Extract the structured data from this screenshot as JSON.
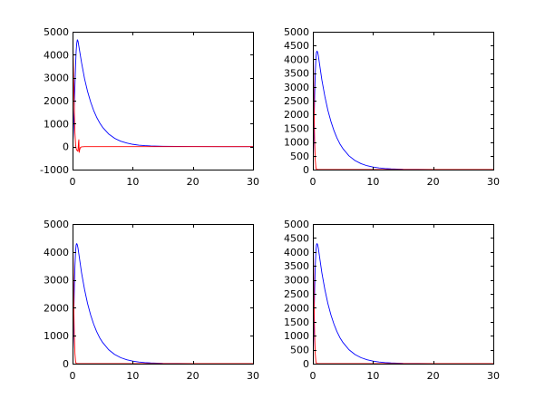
{
  "chart_data": [
    {
      "type": "line",
      "xlim": [
        0,
        30
      ],
      "ylim": [
        -1000,
        5000
      ],
      "xticks": [
        0,
        10,
        20,
        30
      ],
      "yticks": [
        -1000,
        0,
        1000,
        2000,
        3000,
        4000,
        5000
      ],
      "grid": false,
      "series": [
        {
          "color": "#0000ff",
          "x": [
            0,
            0.1,
            0.2,
            0.3,
            0.4,
            0.5,
            0.6,
            0.7,
            0.8,
            0.9,
            1,
            1.5,
            2,
            2.5,
            3,
            3.5,
            4,
            4.5,
            5,
            6,
            7,
            8,
            9,
            10,
            11,
            12,
            13,
            15,
            20,
            25,
            30
          ],
          "y": [
            0,
            350,
            1000,
            1800,
            2700,
            3500,
            4150,
            4500,
            4650,
            4600,
            4450,
            3650,
            2950,
            2400,
            1950,
            1580,
            1280,
            1040,
            840,
            550,
            360,
            235,
            155,
            100,
            65,
            42,
            27,
            12,
            3,
            1,
            0
          ]
        },
        {
          "color": "#ff0000",
          "x": [
            0,
            0.04,
            0.1,
            0.2,
            0.3,
            0.4,
            0.5,
            0.6,
            0.7,
            0.8,
            0.9,
            1.0,
            1.05,
            1.1,
            1.2,
            1.3,
            1.5,
            2,
            5,
            10,
            15,
            20,
            25,
            30
          ],
          "y": [
            5000,
            4800,
            4000,
            2800,
            1500,
            600,
            100,
            -80,
            -150,
            -180,
            -200,
            200,
            300,
            -250,
            -120,
            -40,
            -10,
            0,
            0,
            0,
            0,
            0,
            0,
            0
          ]
        }
      ]
    },
    {
      "type": "line",
      "xlim": [
        0,
        30
      ],
      "ylim": [
        0,
        5000
      ],
      "xticks": [
        0,
        10,
        20,
        30
      ],
      "yticks": [
        0,
        500,
        1000,
        1500,
        2000,
        2500,
        3000,
        3500,
        4000,
        4500,
        5000
      ],
      "grid": false,
      "series": [
        {
          "color": "#0000ff",
          "x": [
            0,
            0.1,
            0.2,
            0.3,
            0.4,
            0.5,
            0.6,
            0.7,
            0.8,
            0.9,
            1,
            1.5,
            2,
            2.5,
            3,
            3.5,
            4,
            4.5,
            5,
            6,
            7,
            8,
            9,
            10,
            11,
            12,
            13,
            15,
            20,
            25,
            30
          ],
          "y": [
            0,
            600,
            1600,
            2700,
            3500,
            4000,
            4250,
            4300,
            4250,
            4150,
            4000,
            3250,
            2650,
            2150,
            1750,
            1420,
            1150,
            930,
            760,
            500,
            330,
            215,
            140,
            92,
            60,
            39,
            25,
            11,
            3,
            1,
            0
          ]
        },
        {
          "color": "#ff0000",
          "x": [
            0,
            0.05,
            0.1,
            0.2,
            0.3,
            0.4,
            0.5,
            0.6,
            0.8,
            1,
            2,
            5,
            10,
            15,
            20,
            25,
            30
          ],
          "y": [
            5000,
            4600,
            3800,
            2200,
            1000,
            350,
            80,
            10,
            0,
            0,
            0,
            0,
            0,
            0,
            0,
            0,
            0
          ]
        }
      ]
    },
    {
      "type": "line",
      "xlim": [
        0,
        30
      ],
      "ylim": [
        0,
        5000
      ],
      "xticks": [
        0,
        10,
        20,
        30
      ],
      "yticks": [
        0,
        1000,
        2000,
        3000,
        4000,
        5000
      ],
      "grid": false,
      "series": [
        {
          "color": "#0000ff",
          "x": [
            0,
            0.1,
            0.2,
            0.3,
            0.4,
            0.5,
            0.6,
            0.7,
            0.8,
            0.9,
            1,
            1.5,
            2,
            2.5,
            3,
            3.5,
            4,
            4.5,
            5,
            6,
            7,
            8,
            9,
            10,
            11,
            12,
            13,
            15,
            20,
            25,
            30
          ],
          "y": [
            0,
            600,
            1600,
            2700,
            3500,
            4000,
            4250,
            4300,
            4250,
            4150,
            4000,
            3250,
            2650,
            2150,
            1750,
            1420,
            1150,
            930,
            760,
            500,
            330,
            215,
            140,
            92,
            60,
            39,
            25,
            11,
            3,
            1,
            0
          ]
        },
        {
          "color": "#ff0000",
          "x": [
            0,
            0.05,
            0.1,
            0.2,
            0.3,
            0.4,
            0.5,
            0.6,
            0.8,
            1,
            2,
            5,
            10,
            15,
            20,
            25,
            30
          ],
          "y": [
            5000,
            4600,
            3800,
            2200,
            1000,
            350,
            80,
            10,
            0,
            0,
            0,
            0,
            0,
            0,
            0,
            0,
            0
          ]
        }
      ]
    },
    {
      "type": "line",
      "xlim": [
        0,
        30
      ],
      "ylim": [
        0,
        5000
      ],
      "xticks": [
        0,
        10,
        20,
        30
      ],
      "yticks": [
        0,
        500,
        1000,
        1500,
        2000,
        2500,
        3000,
        3500,
        4000,
        4500,
        5000
      ],
      "grid": false,
      "series": [
        {
          "color": "#0000ff",
          "x": [
            0,
            0.1,
            0.2,
            0.3,
            0.4,
            0.5,
            0.6,
            0.7,
            0.8,
            0.9,
            1,
            1.5,
            2,
            2.5,
            3,
            3.5,
            4,
            4.5,
            5,
            6,
            7,
            8,
            9,
            10,
            11,
            12,
            13,
            15,
            20,
            25,
            30
          ],
          "y": [
            0,
            600,
            1600,
            2700,
            3500,
            4000,
            4250,
            4300,
            4250,
            4150,
            4000,
            3250,
            2650,
            2150,
            1750,
            1420,
            1150,
            930,
            760,
            500,
            330,
            215,
            140,
            92,
            60,
            39,
            25,
            11,
            3,
            1,
            0
          ]
        },
        {
          "color": "#ff0000",
          "x": [
            0,
            0.05,
            0.1,
            0.2,
            0.3,
            0.4,
            0.5,
            0.6,
            0.8,
            1,
            2,
            5,
            10,
            15,
            20,
            25,
            30
          ],
          "y": [
            5000,
            4600,
            3800,
            2200,
            1000,
            350,
            80,
            10,
            0,
            0,
            0,
            0,
            0,
            0,
            0,
            0,
            0
          ]
        }
      ]
    }
  ]
}
